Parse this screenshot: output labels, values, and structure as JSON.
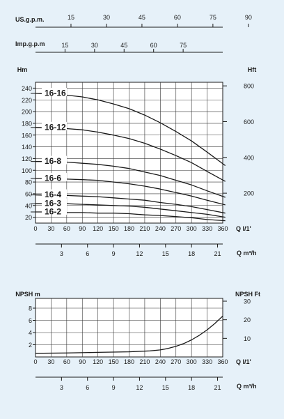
{
  "chart_data": [
    {
      "type": "line",
      "flow_scales": [
        {
          "unit": "US.g.p.m.",
          "ticks": [
            15,
            30,
            45,
            60,
            75,
            90
          ]
        },
        {
          "unit": "Imp.g.p.m",
          "ticks": [
            15,
            30,
            45,
            60,
            75
          ]
        },
        {
          "unit": "Q m³/h",
          "ticks": [
            3,
            6,
            9,
            12,
            15,
            18,
            21
          ]
        }
      ],
      "xlabel": "Q l/1'",
      "x_ticks": [
        0,
        30,
        60,
        90,
        120,
        150,
        180,
        210,
        240,
        270,
        300,
        330,
        360
      ],
      "xlim": [
        0,
        360
      ],
      "ylabel_left": "Hm",
      "y_ticks_left": [
        20,
        40,
        60,
        80,
        100,
        120,
        140,
        160,
        180,
        200,
        220,
        240
      ],
      "ylim_left": [
        10,
        250
      ],
      "ylabel_right": "Hft",
      "y_ticks_right": [
        200,
        400,
        600,
        800
      ],
      "ylim_right": [
        32.8,
        820.2
      ],
      "grid": true,
      "series": [
        {
          "name": "16-16",
          "x": [
            0,
            30,
            60,
            90,
            120,
            150,
            180,
            210,
            240,
            270,
            300,
            330,
            365
          ],
          "y": [
            231,
            230,
            228,
            225,
            220,
            213,
            205,
            194,
            181,
            166,
            150,
            131,
            108
          ]
        },
        {
          "name": "16-12",
          "x": [
            0,
            30,
            60,
            90,
            120,
            150,
            180,
            210,
            240,
            270,
            300,
            330,
            365
          ],
          "y": [
            173,
            172,
            171,
            169,
            165,
            160,
            154,
            146,
            136,
            125,
            113,
            98,
            81
          ]
        },
        {
          "name": "16-8",
          "x": [
            0,
            30,
            60,
            90,
            120,
            150,
            180,
            210,
            240,
            270,
            300,
            330,
            365
          ],
          "y": [
            115,
            115,
            114,
            112,
            110,
            107,
            103,
            97,
            91,
            83,
            75,
            65,
            54
          ]
        },
        {
          "name": "16-6",
          "x": [
            0,
            30,
            60,
            90,
            120,
            150,
            180,
            210,
            240,
            270,
            300,
            330,
            365
          ],
          "y": [
            86,
            86,
            85,
            84,
            83,
            80,
            77,
            73,
            68,
            62,
            56,
            49,
            41
          ]
        },
        {
          "name": "16-4",
          "x": [
            0,
            30,
            60,
            90,
            120,
            150,
            180,
            210,
            240,
            270,
            300,
            330,
            365
          ],
          "y": [
            58,
            57,
            57,
            56,
            55,
            53,
            51,
            49,
            45,
            42,
            38,
            33,
            27
          ]
        },
        {
          "name": "16-3",
          "x": [
            0,
            30,
            60,
            90,
            120,
            150,
            180,
            210,
            240,
            270,
            300,
            330,
            365
          ],
          "y": [
            43,
            43,
            43,
            42,
            41,
            40,
            39,
            37,
            34,
            31,
            28,
            25,
            20
          ]
        },
        {
          "name": "16-2",
          "x": [
            0,
            30,
            60,
            90,
            120,
            150,
            180,
            210,
            240,
            270,
            300,
            330,
            365
          ],
          "y": [
            29,
            29,
            28,
            28,
            27,
            27,
            26,
            24,
            23,
            21,
            19,
            16,
            14
          ]
        }
      ]
    },
    {
      "type": "line",
      "flow_scales": [
        {
          "unit": "Q m³/h",
          "ticks": [
            3,
            6,
            9,
            12,
            15,
            18,
            21
          ]
        }
      ],
      "xlabel": "Q l/1'",
      "x_ticks": [
        0,
        30,
        60,
        90,
        120,
        150,
        180,
        210,
        240,
        270,
        300,
        330,
        360
      ],
      "xlim": [
        0,
        360
      ],
      "ylabel_left": "NPSH m",
      "y_ticks_left": [
        2,
        4,
        6,
        8
      ],
      "ylim_left": [
        0,
        9.6
      ],
      "ylabel_right": "NPSH  Ft",
      "y_ticks_right": [
        10,
        20,
        30
      ],
      "ylim_right": [
        0,
        31.5
      ],
      "grid": true,
      "series": [
        {
          "name": "",
          "x": [
            0,
            60,
            120,
            180,
            220,
            240,
            255,
            270,
            285,
            300,
            315,
            330,
            345,
            360
          ],
          "y": [
            0.6,
            0.65,
            0.75,
            0.85,
            1.0,
            1.15,
            1.4,
            1.75,
            2.2,
            2.8,
            3.55,
            4.45,
            5.5,
            6.7
          ]
        }
      ]
    }
  ]
}
